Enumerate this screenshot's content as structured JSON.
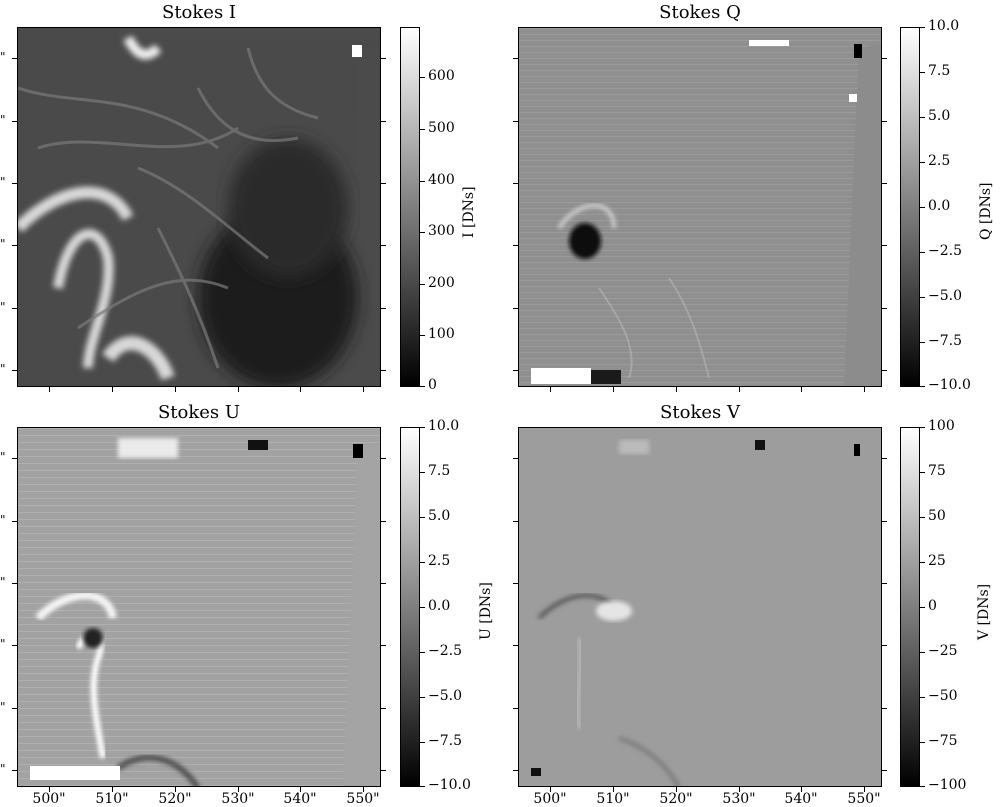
{
  "panels": [
    {
      "key": "I",
      "title": "Stokes I",
      "colorbar_label": "I [DNs]",
      "colorbar_ticks": [
        "600",
        "500",
        "400",
        "300",
        "200",
        "100",
        "0"
      ]
    },
    {
      "key": "Q",
      "title": "Stokes Q",
      "colorbar_label": "Q [DNs]",
      "colorbar_ticks": [
        "10.0",
        "7.5",
        "5.0",
        "2.5",
        "0.0",
        "−2.5",
        "−5.0",
        "−7.5",
        "−10.0"
      ]
    },
    {
      "key": "U",
      "title": "Stokes U",
      "colorbar_label": "U [DNs]",
      "colorbar_ticks": [
        "10.0",
        "7.5",
        "5.0",
        "2.5",
        "0.0",
        "−2.5",
        "−5.0",
        "−7.5",
        "−10.0"
      ]
    },
    {
      "key": "V",
      "title": "Stokes V",
      "colorbar_label": "V [DNs]",
      "colorbar_ticks": [
        "100",
        "75",
        "50",
        "25",
        "0",
        "−25",
        "−50",
        "−75",
        "−100"
      ]
    }
  ],
  "x_tick_labels": [
    "500\"",
    "510\"",
    "520\"",
    "530\"",
    "540\"",
    "550\""
  ],
  "y_tick_label_fragment": "\"",
  "colormap": {
    "low": "#000000",
    "high": "#ffffff"
  }
}
